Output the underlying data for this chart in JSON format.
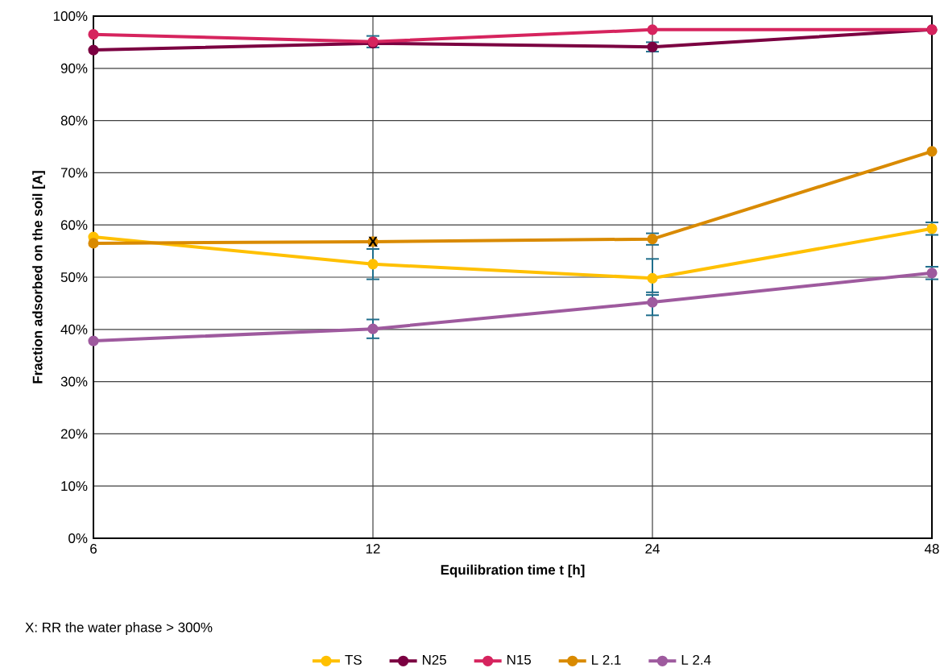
{
  "chart_data": {
    "type": "line",
    "xlabel": "Equilibration time t [h]",
    "ylabel": "Fraction adsorbed on the soil [A]",
    "categories": [
      "6",
      "12",
      "24",
      "48"
    ],
    "series": [
      {
        "name": "TS",
        "color": "#ffc000",
        "values": [
          57.7,
          52.5,
          49.8,
          59.3
        ],
        "errors": [
          null,
          2.9,
          [
            47.1,
            53.5
          ],
          1.2
        ]
      },
      {
        "name": "N25",
        "color": "#7b0041",
        "values": [
          93.5,
          94.8,
          94.1,
          97.4
        ],
        "errors": [
          null,
          null,
          0.9,
          null
        ]
      },
      {
        "name": "N15",
        "color": "#d6245e",
        "values": [
          96.5,
          95.1,
          97.4,
          97.4
        ],
        "errors": [
          null,
          1.1,
          null,
          null
        ]
      },
      {
        "name": "L  2.1",
        "color": "#d98a00",
        "values": [
          56.5,
          56.8,
          57.3,
          74.1
        ],
        "errors": [
          null,
          null,
          1.1,
          null
        ]
      },
      {
        "name": "L  2.4",
        "color": "#9e5a9e",
        "values": [
          37.8,
          40.1,
          45.2,
          50.8
        ],
        "errors": [
          null,
          1.8,
          [
            42.7,
            46.6
          ],
          1.2
        ]
      }
    ],
    "ylim": [
      0,
      100
    ],
    "yticks": [
      {
        "value": 0,
        "label": "0%"
      },
      {
        "value": 10,
        "label": "10%"
      },
      {
        "value": 20,
        "label": "20%"
      },
      {
        "value": 30,
        "label": "30%"
      },
      {
        "value": 40,
        "label": "40%"
      },
      {
        "value": 50,
        "label": "50%"
      },
      {
        "value": 60,
        "label": "60%"
      },
      {
        "value": 70,
        "label": "70%"
      },
      {
        "value": 80,
        "label": "80%"
      },
      {
        "value": 90,
        "label": "90%"
      },
      {
        "value": 100,
        "label": "100%"
      }
    ],
    "grid": true,
    "legend": "bottom",
    "marker": "circle",
    "line_style": "solid",
    "annotations": [
      {
        "text": "X",
        "x": "12",
        "y": 56.8
      },
      "X: RR the water phase > 300%"
    ]
  }
}
